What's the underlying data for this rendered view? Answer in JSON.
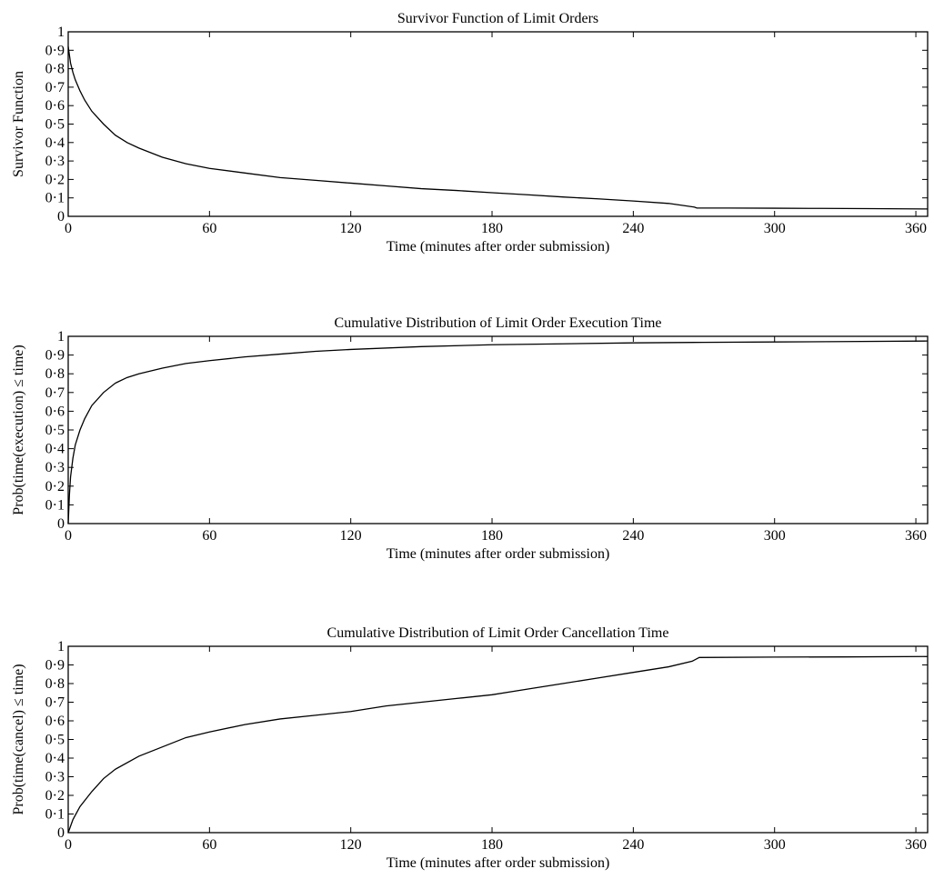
{
  "chart_data": [
    {
      "type": "line",
      "title": "Survivor Function of Limit Orders",
      "xlabel": "Time (minutes after order submission)",
      "ylabel": "Survivor Function",
      "xlim": [
        0,
        365
      ],
      "ylim": [
        0,
        1
      ],
      "grid": false,
      "xticks": [
        "0",
        "60",
        "120",
        "180",
        "240",
        "300",
        "360"
      ],
      "yticks": [
        "0",
        "0·1",
        "0·2",
        "0·3",
        "0·4",
        "0·5",
        "0·6",
        "0·7",
        "0·8",
        "0·9",
        "1"
      ],
      "series": [
        {
          "x": [
            0,
            1,
            2,
            3,
            5,
            7,
            10,
            15,
            20,
            25,
            30,
            40,
            50,
            60,
            75,
            90,
            105,
            120,
            135,
            150,
            165,
            180,
            195,
            210,
            225,
            240,
            255,
            266,
            267,
            280,
            300,
            320,
            340,
            365
          ],
          "y": [
            0.92,
            0.83,
            0.78,
            0.74,
            0.68,
            0.63,
            0.57,
            0.5,
            0.44,
            0.4,
            0.37,
            0.32,
            0.285,
            0.26,
            0.235,
            0.21,
            0.195,
            0.18,
            0.165,
            0.15,
            0.14,
            0.128,
            0.117,
            0.105,
            0.095,
            0.083,
            0.07,
            0.05,
            0.045,
            0.045,
            0.044,
            0.043,
            0.042,
            0.04
          ]
        }
      ]
    },
    {
      "type": "line",
      "title": "Cumulative Distribution of Limit Order Execution Time",
      "xlabel": "Time (minutes after order submission)",
      "ylabel": "Prob(time(execution) ≤ time)",
      "xlim": [
        0,
        365
      ],
      "ylim": [
        0,
        1
      ],
      "grid": false,
      "xticks": [
        "0",
        "60",
        "120",
        "180",
        "240",
        "300",
        "360"
      ],
      "yticks": [
        "0",
        "0·1",
        "0·2",
        "0·3",
        "0·4",
        "0·5",
        "0·6",
        "0·7",
        "0·8",
        "0·9",
        "1"
      ],
      "series": [
        {
          "x": [
            0,
            0.5,
            1,
            2,
            3,
            5,
            7,
            10,
            15,
            20,
            25,
            30,
            40,
            50,
            60,
            75,
            90,
            105,
            120,
            150,
            180,
            210,
            240,
            270,
            300,
            330,
            365
          ],
          "y": [
            0.0,
            0.15,
            0.25,
            0.35,
            0.42,
            0.5,
            0.56,
            0.63,
            0.7,
            0.75,
            0.78,
            0.8,
            0.83,
            0.855,
            0.87,
            0.89,
            0.905,
            0.92,
            0.93,
            0.945,
            0.955,
            0.96,
            0.965,
            0.968,
            0.97,
            0.972,
            0.975
          ]
        }
      ]
    },
    {
      "type": "line",
      "title": "Cumulative Distribution of Limit Order Cancellation Time",
      "xlabel": "Time (minutes after order submission)",
      "ylabel": "Prob(time(cancel) ≤ time)",
      "xlim": [
        0,
        365
      ],
      "ylim": [
        0,
        1
      ],
      "grid": false,
      "xticks": [
        "0",
        "60",
        "120",
        "180",
        "240",
        "300",
        "360"
      ],
      "yticks": [
        "0",
        "0·1",
        "0·2",
        "0·3",
        "0·4",
        "0·5",
        "0·6",
        "0·7",
        "0·8",
        "0·9",
        "1"
      ],
      "series": [
        {
          "x": [
            0,
            2,
            5,
            10,
            15,
            20,
            30,
            40,
            50,
            60,
            75,
            90,
            105,
            120,
            135,
            150,
            165,
            180,
            195,
            210,
            225,
            240,
            255,
            265,
            268,
            300,
            330,
            365
          ],
          "y": [
            0.0,
            0.07,
            0.14,
            0.22,
            0.29,
            0.34,
            0.41,
            0.46,
            0.51,
            0.54,
            0.58,
            0.61,
            0.63,
            0.65,
            0.68,
            0.7,
            0.72,
            0.74,
            0.77,
            0.8,
            0.83,
            0.86,
            0.89,
            0.92,
            0.94,
            0.942,
            0.943,
            0.945
          ]
        }
      ]
    }
  ]
}
